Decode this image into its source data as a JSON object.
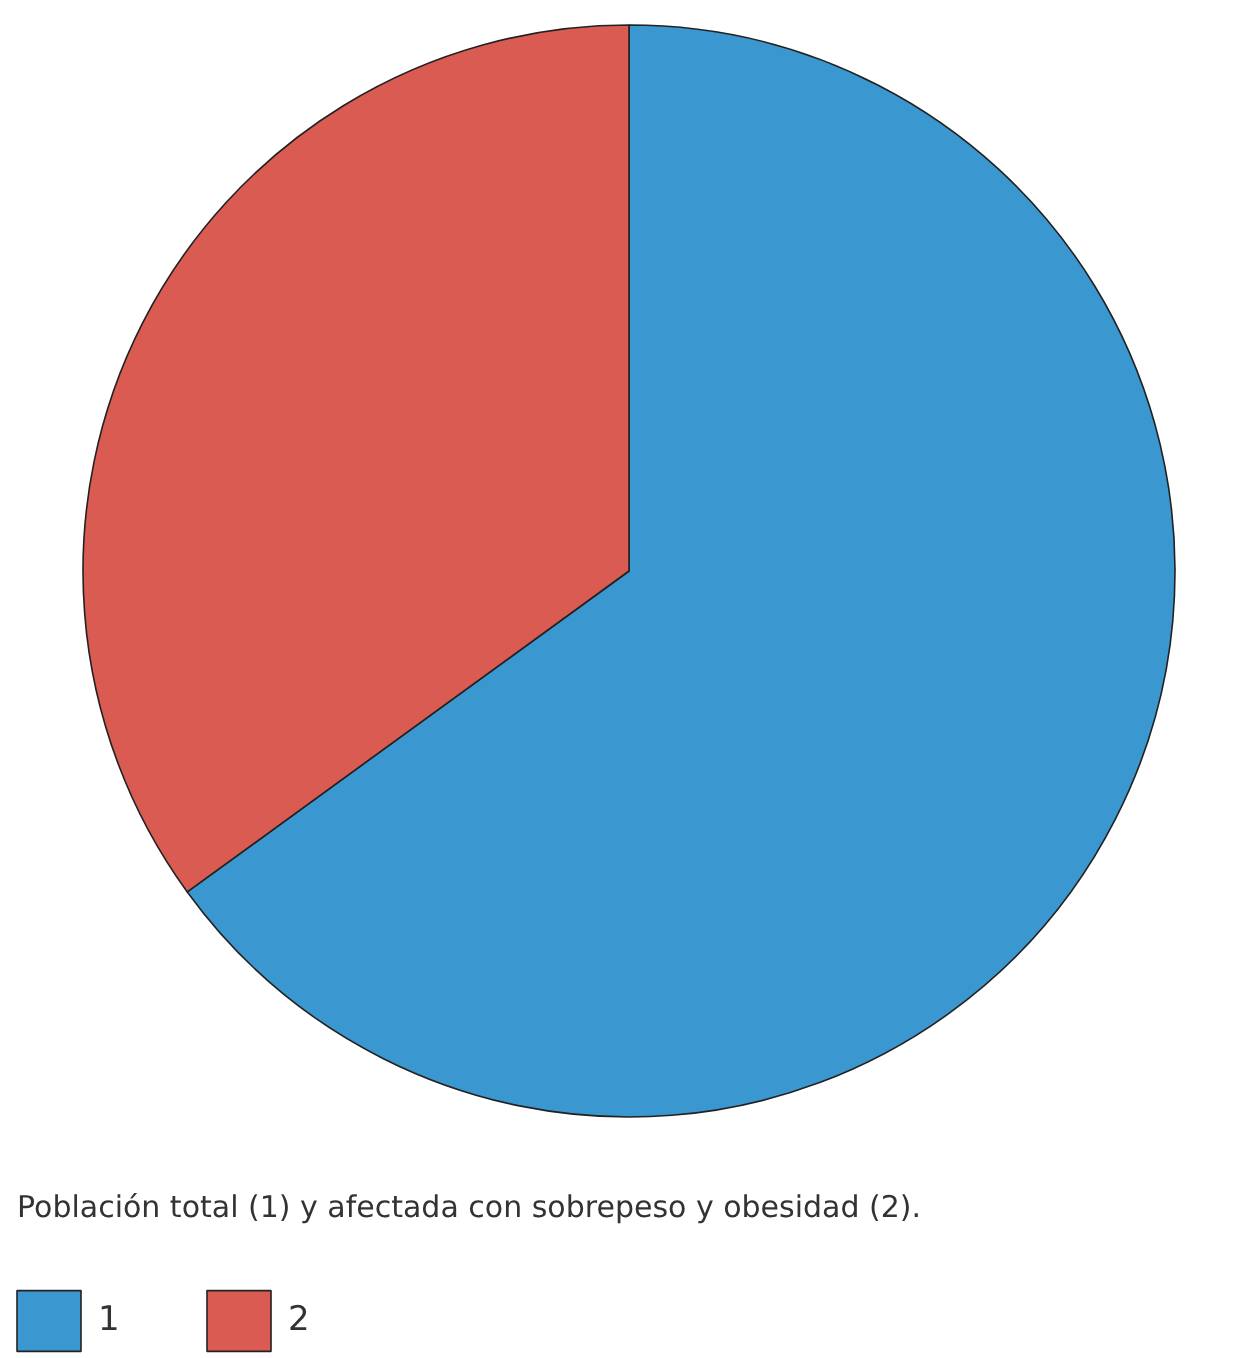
{
  "chart_data": {
    "type": "pie",
    "title": "Población total (1) y afectada con sobrepeso y obesidad (2).",
    "categories": [
      "1",
      "2"
    ],
    "values": [
      65,
      35
    ],
    "colors": [
      "#3a97cf",
      "#d95b52"
    ],
    "legend": "bottom left"
  }
}
